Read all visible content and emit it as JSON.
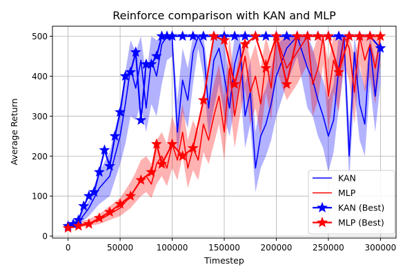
{
  "chart_data": {
    "type": "line",
    "title": "Reinforce comparison with KAN and MLP",
    "xlabel": "Timestep",
    "ylabel": "Average Return",
    "xlim": [
      -15000,
      315000
    ],
    "ylim": [
      -5,
      525
    ],
    "x_ticks": [
      0,
      50000,
      100000,
      150000,
      200000,
      250000,
      300000
    ],
    "x_tick_labels": [
      "0",
      "50000",
      "100000",
      "150000",
      "200000",
      "250000",
      "300000"
    ],
    "y_ticks": [
      0,
      100,
      200,
      300,
      400,
      500
    ],
    "y_tick_labels": [
      "0",
      "100",
      "200",
      "300",
      "400",
      "500"
    ],
    "grid": true,
    "legend_position": "lower-right",
    "colors": {
      "kan": "#0000ff",
      "mlp": "#ff0000"
    },
    "series": [
      {
        "name": "KAN",
        "color": "#0000ff",
        "style": "line",
        "x": [
          0,
          10000,
          20000,
          30000,
          40000,
          50000,
          55000,
          60000,
          65000,
          70000,
          75000,
          80000,
          85000,
          90000,
          95000,
          100000,
          105000,
          110000,
          115000,
          120000,
          125000,
          130000,
          135000,
          140000,
          145000,
          150000,
          155000,
          160000,
          165000,
          170000,
          175000,
          180000,
          185000,
          190000,
          195000,
          200000,
          210000,
          220000,
          230000,
          235000,
          240000,
          245000,
          250000,
          255000,
          260000,
          265000,
          270000,
          275000,
          280000,
          285000,
          290000,
          295000,
          300000
        ],
        "y": [
          25,
          35,
          70,
          120,
          150,
          250,
          330,
          420,
          370,
          440,
          320,
          440,
          400,
          480,
          500,
          495,
          260,
          390,
          340,
          460,
          500,
          470,
          320,
          440,
          470,
          400,
          320,
          430,
          480,
          300,
          360,
          170,
          250,
          280,
          330,
          400,
          470,
          500,
          420,
          390,
          340,
          300,
          250,
          290,
          420,
          500,
          200,
          460,
          330,
          280,
          480,
          350,
          470
        ],
        "lower": [
          20,
          28,
          50,
          80,
          100,
          180,
          230,
          300,
          290,
          330,
          260,
          330,
          300,
          380,
          440,
          450,
          200,
          310,
          270,
          380,
          470,
          400,
          250,
          320,
          380,
          300,
          250,
          320,
          380,
          220,
          280,
          110,
          170,
          200,
          240,
          300,
          380,
          450,
          320,
          300,
          250,
          220,
          160,
          210,
          320,
          420,
          140,
          360,
          240,
          200,
          380,
          260,
          380
        ],
        "upper": [
          30,
          45,
          90,
          160,
          210,
          320,
          410,
          490,
          460,
          500,
          400,
          500,
          490,
          500,
          500,
          500,
          340,
          470,
          420,
          500,
          500,
          500,
          400,
          500,
          500,
          480,
          400,
          500,
          500,
          380,
          440,
          260,
          340,
          370,
          420,
          480,
          500,
          500,
          500,
          470,
          420,
          390,
          340,
          380,
          500,
          500,
          280,
          500,
          420,
          370,
          500,
          440,
          500
        ]
      },
      {
        "name": "MLP",
        "color": "#ff0000",
        "style": "line",
        "x": [
          0,
          10000,
          20000,
          30000,
          40000,
          50000,
          55000,
          60000,
          65000,
          70000,
          75000,
          80000,
          85000,
          90000,
          95000,
          100000,
          105000,
          110000,
          115000,
          120000,
          125000,
          130000,
          135000,
          140000,
          145000,
          150000,
          155000,
          160000,
          165000,
          170000,
          175000,
          180000,
          185000,
          190000,
          195000,
          200000,
          210000,
          220000,
          230000,
          235000,
          240000,
          245000,
          250000,
          255000,
          260000,
          265000,
          270000,
          275000,
          280000,
          285000,
          290000,
          295000,
          300000
        ],
        "y": [
          22,
          28,
          32,
          40,
          55,
          70,
          85,
          100,
          120,
          140,
          150,
          130,
          180,
          200,
          170,
          230,
          190,
          260,
          170,
          220,
          190,
          280,
          240,
          300,
          350,
          260,
          420,
          300,
          380,
          450,
          360,
          400,
          330,
          440,
          370,
          500,
          420,
          460,
          500,
          380,
          420,
          500,
          350,
          440,
          400,
          500,
          470,
          360,
          500,
          440,
          480,
          420,
          500
        ],
        "lower": [
          18,
          22,
          25,
          30,
          40,
          50,
          60,
          70,
          85,
          100,
          110,
          95,
          130,
          150,
          125,
          170,
          140,
          200,
          120,
          165,
          140,
          210,
          180,
          230,
          280,
          190,
          340,
          220,
          300,
          370,
          280,
          320,
          250,
          360,
          290,
          420,
          340,
          380,
          430,
          300,
          340,
          430,
          260,
          360,
          310,
          430,
          390,
          280,
          430,
          360,
          400,
          330,
          430
        ],
        "upper": [
          28,
          35,
          42,
          55,
          75,
          95,
          115,
          135,
          160,
          190,
          200,
          180,
          240,
          260,
          230,
          300,
          260,
          330,
          240,
          290,
          260,
          360,
          320,
          380,
          430,
          340,
          500,
          390,
          460,
          500,
          440,
          480,
          420,
          500,
          450,
          500,
          500,
          500,
          500,
          460,
          500,
          500,
          440,
          500,
          490,
          500,
          500,
          450,
          500,
          500,
          500,
          500,
          500
        ]
      },
      {
        "name": "KAN (Best)",
        "color": "#0000ff",
        "style": "line-star",
        "x": [
          0,
          5000,
          10000,
          15000,
          20000,
          25000,
          30000,
          35000,
          40000,
          45000,
          50000,
          55000,
          60000,
          65000,
          70000,
          75000,
          80000,
          85000,
          90000,
          95000,
          100000,
          110000,
          120000,
          130000,
          140000,
          150000,
          160000,
          170000,
          180000,
          190000,
          200000,
          210000,
          220000,
          230000,
          240000,
          250000,
          260000,
          270000,
          280000,
          290000,
          300000
        ],
        "y": [
          25,
          30,
          40,
          75,
          100,
          110,
          160,
          215,
          175,
          250,
          310,
          400,
          410,
          460,
          290,
          430,
          430,
          450,
          500,
          500,
          500,
          500,
          500,
          500,
          500,
          500,
          500,
          500,
          500,
          500,
          500,
          500,
          500,
          500,
          500,
          500,
          500,
          500,
          500,
          500,
          470
        ]
      },
      {
        "name": "MLP (Best)",
        "color": "#ff0000",
        "style": "line-star",
        "x": [
          0,
          10000,
          20000,
          30000,
          40000,
          50000,
          60000,
          70000,
          80000,
          85000,
          90000,
          100000,
          110000,
          120000,
          130000,
          140000,
          150000,
          160000,
          170000,
          180000,
          190000,
          200000,
          210000,
          220000,
          230000,
          240000,
          250000,
          260000,
          270000,
          280000,
          290000,
          300000
        ],
        "y": [
          20,
          25,
          30,
          45,
          60,
          80,
          100,
          140,
          160,
          230,
          180,
          230,
          200,
          220,
          340,
          500,
          490,
          380,
          480,
          500,
          420,
          500,
          380,
          500,
          500,
          500,
          500,
          410,
          500,
          500,
          500,
          500
        ]
      }
    ]
  }
}
